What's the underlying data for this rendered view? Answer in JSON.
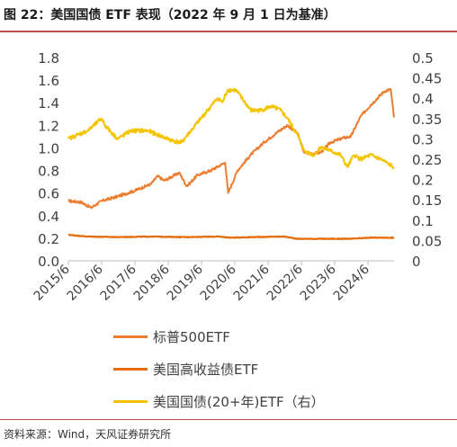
{
  "title": "图 22：美国国债 ETF 表现（2022 年 9 月 1 日为基准）",
  "source": "资料来源：Wind，天风证券研究所",
  "colors": {
    "title_rule": "#c0504d",
    "axis": "#bfbfbf",
    "series_spx": "#ed7d31",
    "series_hy": "#e46c0a",
    "series_tlt": "#f5c400"
  },
  "chart_data": {
    "type": "line",
    "title": "图 22：美国国债 ETF 表现（2022 年 9 月 1 日为基准）",
    "x_tick_labels": [
      "2015/6",
      "2016/6",
      "2017/6",
      "2018/6",
      "2019/6",
      "2020/6",
      "2021/6",
      "2022/6",
      "2023/6",
      "2024/6"
    ],
    "xlim": [
      "2015/6",
      "2025/3"
    ],
    "y_left": {
      "lim": [
        0,
        1.8
      ],
      "ticks": [
        0.0,
        0.2,
        0.4,
        0.6,
        0.8,
        1.0,
        1.2,
        1.4,
        1.6,
        1.8
      ],
      "tick_labels": [
        "0.0",
        "0.2",
        "0.4",
        "0.6",
        "0.8",
        "1.0",
        "1.2",
        "1.4",
        "1.6",
        "1.8"
      ]
    },
    "y_right": {
      "lim": [
        0,
        0.5
      ],
      "ticks": [
        0,
        0.05,
        0.1,
        0.15,
        0.2,
        0.25,
        0.3,
        0.35,
        0.4,
        0.45,
        0.5
      ],
      "tick_labels": [
        "0",
        "0.05",
        "0.1",
        "0.15",
        "0.2",
        "0.25",
        "0.3",
        "0.35",
        "0.4",
        "0.45",
        "0.5"
      ]
    },
    "grid": false,
    "legend": "bottom",
    "series": [
      {
        "name": "标普500ETF",
        "axis": "left",
        "x": [
          2015.42,
          2015.8,
          2016.1,
          2016.42,
          2016.9,
          2017.4,
          2017.9,
          2018.1,
          2018.3,
          2018.75,
          2018.98,
          2019.3,
          2019.7,
          2020.0,
          2020.13,
          2020.22,
          2020.5,
          2020.9,
          2021.3,
          2021.7,
          2022.0,
          2022.3,
          2022.5,
          2022.8,
          2023.0,
          2023.3,
          2023.7,
          2023.9,
          2024.2,
          2024.5,
          2024.9,
          2025.1,
          2025.2
        ],
        "y": [
          0.53,
          0.52,
          0.47,
          0.53,
          0.57,
          0.62,
          0.68,
          0.75,
          0.71,
          0.78,
          0.66,
          0.76,
          0.8,
          0.85,
          0.87,
          0.6,
          0.8,
          0.94,
          1.05,
          1.14,
          1.2,
          1.13,
          0.96,
          0.95,
          0.96,
          1.05,
          1.09,
          1.1,
          1.28,
          1.38,
          1.5,
          1.52,
          1.27
        ]
      },
      {
        "name": "美国高收益债ETF",
        "axis": "left",
        "x": [
          2015.42,
          2016.0,
          2016.9,
          2017.9,
          2018.9,
          2019.9,
          2020.3,
          2020.9,
          2021.9,
          2022.3,
          2022.9,
          2023.9,
          2024.5,
          2025.2
        ],
        "y": [
          0.23,
          0.215,
          0.21,
          0.215,
          0.21,
          0.215,
          0.205,
          0.21,
          0.215,
          0.195,
          0.195,
          0.195,
          0.205,
          0.205
        ]
      },
      {
        "name": "美国国债(20+年)ETF（右）",
        "axis": "right",
        "x": [
          2015.42,
          2015.7,
          2016.0,
          2016.42,
          2016.55,
          2016.9,
          2017.3,
          2017.8,
          2018.1,
          2018.4,
          2018.8,
          2019.2,
          2019.6,
          2019.9,
          2020.05,
          2020.2,
          2020.45,
          2020.9,
          2021.2,
          2021.5,
          2021.8,
          2022.0,
          2022.3,
          2022.5,
          2022.8,
          2023.0,
          2023.3,
          2023.6,
          2023.8,
          2024.0,
          2024.2,
          2024.5,
          2024.8,
          2025.0,
          2025.2
        ],
        "y": [
          0.3,
          0.31,
          0.32,
          0.35,
          0.33,
          0.3,
          0.32,
          0.32,
          0.31,
          0.3,
          0.29,
          0.33,
          0.37,
          0.4,
          0.39,
          0.42,
          0.42,
          0.37,
          0.37,
          0.38,
          0.37,
          0.35,
          0.31,
          0.27,
          0.26,
          0.28,
          0.27,
          0.26,
          0.23,
          0.26,
          0.25,
          0.26,
          0.25,
          0.24,
          0.23
        ]
      }
    ]
  }
}
